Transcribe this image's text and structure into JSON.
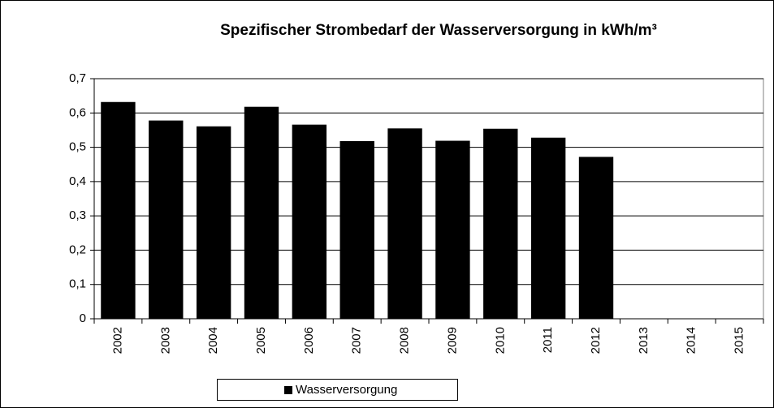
{
  "chart_data": {
    "type": "bar",
    "title": "Spezifischer Strombedarf der Wasserversorgung in kWh/m³",
    "categories": [
      "2002",
      "2003",
      "2004",
      "2005",
      "2006",
      "2007",
      "2008",
      "2009",
      "2010",
      "2011",
      "2012",
      "2013",
      "2014",
      "2015"
    ],
    "series": [
      {
        "name": "Wasserversorgung",
        "color": "#000000",
        "values": [
          0.632,
          0.578,
          0.561,
          0.618,
          0.566,
          0.518,
          0.555,
          0.519,
          0.554,
          0.528,
          0.472,
          null,
          null,
          null
        ]
      }
    ],
    "ylim": [
      0,
      0.7
    ],
    "yticks": [
      0,
      {
        "value": 0.1,
        "label": "0,1"
      },
      {
        "value": 0.2,
        "label": "0,2"
      },
      {
        "value": 0.3,
        "label": "0,3"
      },
      {
        "value": 0.4,
        "label": "0,4"
      },
      {
        "value": 0.5,
        "label": "0,5"
      },
      {
        "value": 0.6,
        "label": "0,6"
      },
      {
        "value": 0.7,
        "label": "0,7"
      }
    ],
    "grid": true,
    "legend": "bottom"
  }
}
